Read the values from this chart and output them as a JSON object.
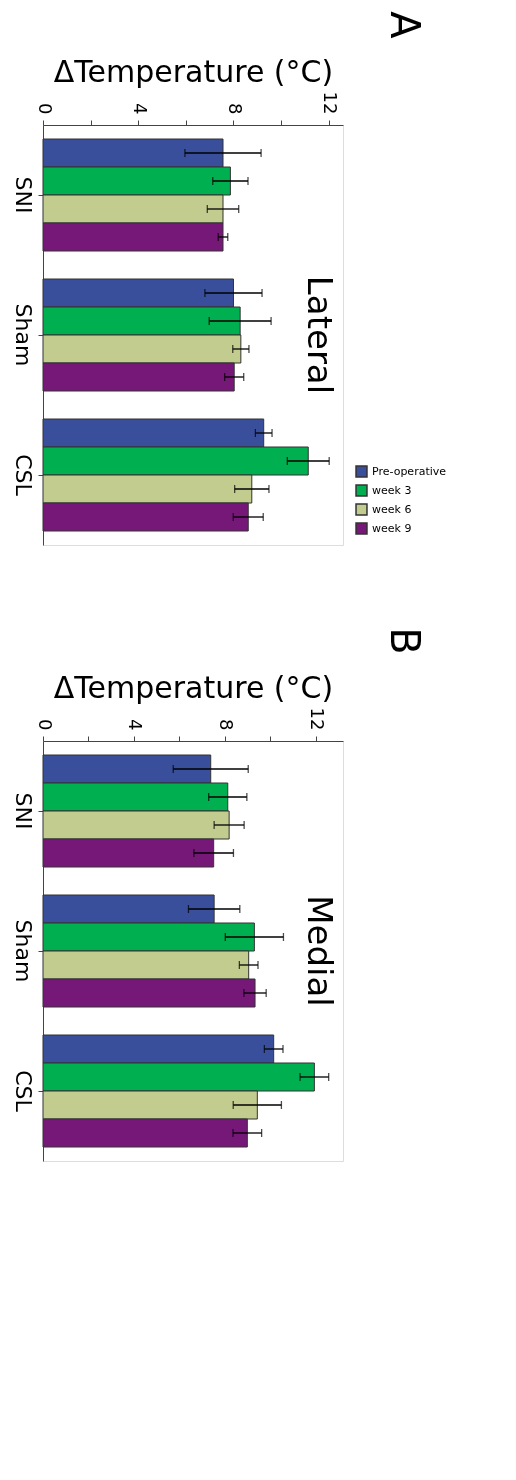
{
  "chart_data": [
    {
      "type": "bar",
      "orientation": "horizontal",
      "title": "Lateral",
      "xlabel": "ΔTemperature (°C)",
      "annotations": [
        "A"
      ],
      "categories": [
        "SNI",
        "Sham",
        "CSL"
      ],
      "xlim": [
        0,
        12.6
      ],
      "xticks": [
        0,
        {
          "value": 2,
          "label": null
        },
        4,
        {
          "value": 6,
          "label": null
        },
        8,
        {
          "value": 10,
          "label": null
        },
        12
      ],
      "grid": false,
      "legend": "right",
      "series": [
        {
          "name": "Pre-operative",
          "color": "#3a4f9c",
          "values": [
            7.56,
            8.0,
            9.27
          ],
          "errors": [
            1.6,
            1.2,
            0.35
          ]
        },
        {
          "name": "week 3",
          "color": "#00b050",
          "values": [
            7.87,
            8.28,
            11.14
          ],
          "errors": [
            0.74,
            1.3,
            0.88
          ]
        },
        {
          "name": "week 6",
          "color": "#c3cc8f",
          "values": [
            7.56,
            8.31,
            8.77
          ],
          "errors": [
            0.66,
            0.34,
            0.72
          ]
        },
        {
          "name": "week 9",
          "color": "#761878",
          "values": [
            7.56,
            8.03,
            8.62
          ],
          "errors": [
            0.2,
            0.4,
            0.63
          ]
        }
      ]
    },
    {
      "type": "bar",
      "orientation": "horizontal",
      "title": "Medial",
      "xlabel": "ΔTemperature (°C)",
      "annotations": [
        "B"
      ],
      "categories": [
        "SNI",
        "Sham",
        "CSL"
      ],
      "xlim": [
        0,
        13.2
      ],
      "xticks": [
        0,
        {
          "value": 2,
          "label": null
        },
        4,
        {
          "value": 6,
          "label": null
        },
        8,
        {
          "value": 10,
          "label": null
        },
        12
      ],
      "grid": false,
      "legend": "right",
      "series": [
        {
          "name": "Pre-operative",
          "color": "#3a4f9c",
          "values": [
            7.38,
            7.53,
            10.15
          ],
          "errors": [
            1.65,
            1.13,
            0.41
          ]
        },
        {
          "name": "week 3",
          "color": "#00b050",
          "values": [
            8.13,
            9.3,
            11.94
          ],
          "errors": [
            0.84,
            1.28,
            0.63
          ]
        },
        {
          "name": "week 6",
          "color": "#c3cc8f",
          "values": [
            8.19,
            9.05,
            9.43
          ],
          "errors": [
            0.66,
            0.41,
            1.06
          ]
        },
        {
          "name": "week 9",
          "color": "#761878",
          "values": [
            7.51,
            9.33,
            8.99
          ],
          "errors": [
            0.87,
            0.49,
            0.63
          ]
        }
      ]
    }
  ]
}
